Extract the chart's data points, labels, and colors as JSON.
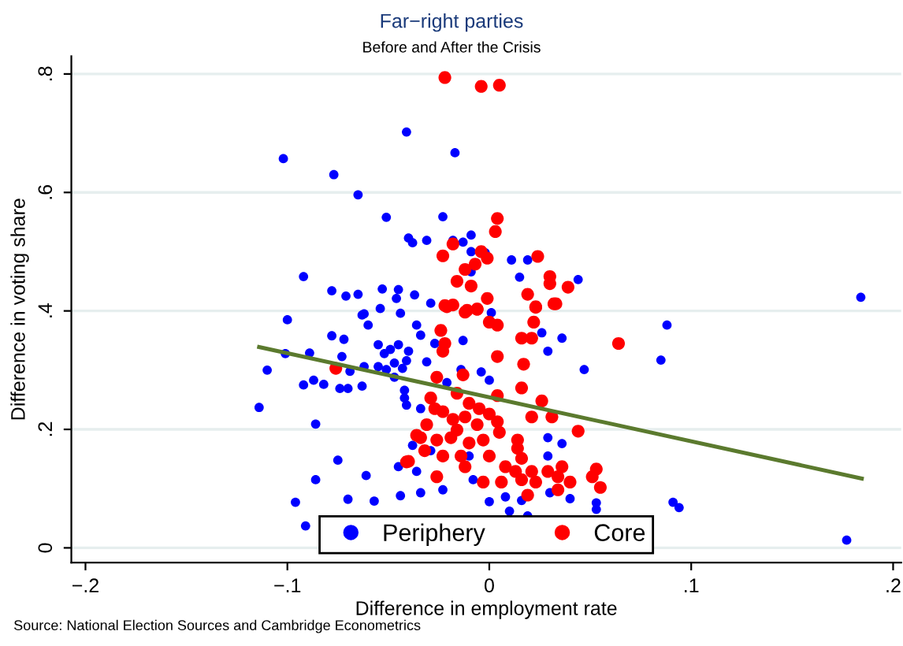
{
  "chart_data": {
    "type": "scatter",
    "title": "Far−right parties",
    "subtitle": "Before and After the Crisis",
    "xlabel": "Difference in employment rate",
    "ylabel": "Difference in voting share",
    "annotations": [
      "Source: National Election Sources and Cambridge Econometrics"
    ],
    "xlim": [
      -0.207,
      0.204
    ],
    "ylim": [
      -0.025,
      0.83
    ],
    "xticks": [
      {
        "value": -0.2,
        "label": "−.2"
      },
      {
        "value": -0.1,
        "label": "−.1"
      },
      0,
      {
        "value": 0.1,
        "label": ".1"
      },
      {
        "value": 0.2,
        "label": ".2"
      }
    ],
    "yticks": [
      0,
      {
        "value": 0.2,
        "label": ".2"
      },
      {
        "value": 0.4,
        "label": ".4"
      },
      {
        "value": 0.6,
        "label": ".6"
      },
      {
        "value": 0.8,
        "label": ".8"
      }
    ],
    "grid": "y",
    "legend": "bottom",
    "series": [
      {
        "name": "Periphery",
        "marker": "circle",
        "color": "#0000ff",
        "x": [
          -0.041,
          -0.102,
          -0.077,
          -0.065,
          -0.051,
          -0.04,
          -0.092,
          -0.078,
          -0.071,
          -0.065,
          -0.053,
          -0.045,
          -0.046,
          -0.054,
          -0.062,
          -0.044,
          -0.017,
          -0.023,
          -0.038,
          -0.031,
          -0.009,
          -0.013,
          -0.018,
          -0.009,
          -0.002,
          -0.009,
          0.011,
          0.019,
          0.015,
          0.044,
          -0.037,
          -0.029,
          0.001,
          -0.1,
          -0.078,
          -0.072,
          -0.063,
          -0.06,
          -0.101,
          -0.089,
          -0.073,
          -0.11,
          -0.087,
          -0.092,
          -0.082,
          -0.074,
          -0.07,
          -0.063,
          -0.069,
          -0.062,
          -0.055,
          -0.052,
          -0.049,
          -0.045,
          -0.055,
          -0.051,
          -0.047,
          -0.043,
          -0.047,
          -0.041,
          -0.114,
          -0.086,
          -0.042,
          -0.042,
          -0.041,
          -0.075,
          -0.061,
          -0.045,
          -0.086,
          -0.07,
          -0.057,
          -0.044,
          -0.096,
          -0.091,
          -0.036,
          -0.034,
          -0.027,
          -0.04,
          -0.031,
          -0.013,
          -0.014,
          -0.004,
          0.0,
          -0.034,
          -0.021,
          0.029,
          0.036,
          0.026,
          0.047,
          0.088,
          0.085,
          0.029,
          0.036,
          0.029,
          -0.038,
          -0.036,
          -0.023,
          -0.034,
          0.0,
          0.008,
          0.016,
          0.03,
          0.04,
          0.053,
          0.053,
          0.01,
          0.019,
          -0.008,
          -0.029,
          -0.01,
          0.091,
          0.094,
          0.177,
          0.184
        ],
        "values": [
          0.702,
          0.657,
          0.63,
          0.596,
          0.558,
          0.523,
          0.458,
          0.434,
          0.425,
          0.428,
          0.437,
          0.436,
          0.421,
          0.404,
          0.395,
          0.396,
          0.667,
          0.559,
          0.515,
          0.519,
          0.528,
          0.516,
          0.519,
          0.5,
          0.498,
          0.466,
          0.486,
          0.486,
          0.457,
          0.453,
          0.427,
          0.413,
          0.397,
          0.385,
          0.358,
          0.352,
          0.393,
          0.376,
          0.328,
          0.329,
          0.323,
          0.3,
          0.283,
          0.275,
          0.276,
          0.269,
          0.269,
          0.273,
          0.298,
          0.306,
          0.343,
          0.328,
          0.335,
          0.343,
          0.306,
          0.301,
          0.312,
          0.303,
          0.288,
          0.316,
          0.237,
          0.209,
          0.266,
          0.253,
          0.241,
          0.148,
          0.122,
          0.137,
          0.115,
          0.082,
          0.079,
          0.088,
          0.077,
          0.037,
          0.376,
          0.359,
          0.345,
          0.332,
          0.314,
          0.35,
          0.301,
          0.297,
          0.283,
          0.235,
          0.279,
          0.332,
          0.354,
          0.363,
          0.301,
          0.376,
          0.317,
          0.186,
          0.176,
          0.155,
          0.173,
          0.129,
          0.098,
          0.093,
          0.078,
          0.086,
          0.08,
          0.093,
          0.083,
          0.076,
          0.065,
          0.062,
          0.054,
          0.115,
          0.164,
          0.155,
          0.077,
          0.068,
          0.013,
          0.423
        ]
      },
      {
        "name": "Core",
        "marker": "circle",
        "color": "#ff0000",
        "x": [
          -0.022,
          -0.004,
          0.005,
          0.004,
          0.003,
          -0.018,
          -0.023,
          -0.004,
          -0.001,
          -0.007,
          -0.012,
          -0.016,
          -0.009,
          -0.001,
          -0.022,
          -0.018,
          -0.011,
          -0.006,
          0.024,
          0.03,
          0.03,
          0.039,
          0.019,
          0.023,
          0.033,
          -0.076,
          -0.041,
          -0.021,
          -0.012,
          -0.006,
          0.0,
          0.004,
          0.023,
          0.032,
          0.022,
          0.016,
          0.021,
          -0.024,
          -0.022,
          -0.023,
          0.064,
          0.004,
          0.017,
          -0.026,
          -0.013,
          0.016,
          0.004,
          -0.029,
          -0.016,
          -0.01,
          0.026,
          0.031,
          0.044,
          0.021,
          -0.023,
          -0.018,
          -0.012,
          -0.006,
          -0.016,
          -0.031,
          -0.034,
          -0.036,
          -0.026,
          -0.019,
          -0.01,
          -0.003,
          0.004,
          0.005,
          0.0,
          -0.005,
          -0.027,
          -0.032,
          -0.023,
          -0.014,
          0.014,
          0.014,
          0.016,
          -0.04,
          -0.012,
          -0.026,
          0.008,
          0.013,
          0.006,
          0.016,
          0.021,
          0.023,
          0.029,
          0.036,
          0.034,
          -0.003,
          0.019,
          0.034,
          0.04,
          0.053,
          0.051,
          0.055,
          0.0
        ],
        "values": [
          0.794,
          0.779,
          0.781,
          0.556,
          0.534,
          0.513,
          0.493,
          0.5,
          0.489,
          0.479,
          0.47,
          0.45,
          0.442,
          0.421,
          0.409,
          0.41,
          0.401,
          0.403,
          0.492,
          0.458,
          0.446,
          0.44,
          0.428,
          0.406,
          0.412,
          0.303,
          0.145,
          0.407,
          0.398,
          0.403,
          0.381,
          0.376,
          0.407,
          0.412,
          0.381,
          0.354,
          0.354,
          0.367,
          0.345,
          0.332,
          0.345,
          0.323,
          0.31,
          0.288,
          0.292,
          0.27,
          0.257,
          0.253,
          0.261,
          0.244,
          0.248,
          0.221,
          0.197,
          0.221,
          0.23,
          0.217,
          0.221,
          0.208,
          0.199,
          0.208,
          0.186,
          0.19,
          0.182,
          0.186,
          0.177,
          0.182,
          0.213,
          0.195,
          0.226,
          0.235,
          0.235,
          0.164,
          0.155,
          0.155,
          0.182,
          0.168,
          0.151,
          0.146,
          0.137,
          0.12,
          0.137,
          0.129,
          0.111,
          0.115,
          0.129,
          0.111,
          0.129,
          0.137,
          0.12,
          0.111,
          0.089,
          0.098,
          0.111,
          0.133,
          0.12,
          0.102,
          0.155
        ]
      },
      {
        "type": "line",
        "color": "#5b7a2e",
        "x": [
          -0.114,
          0.1845
        ],
        "values": [
          0.339,
          0.117
        ]
      }
    ]
  }
}
